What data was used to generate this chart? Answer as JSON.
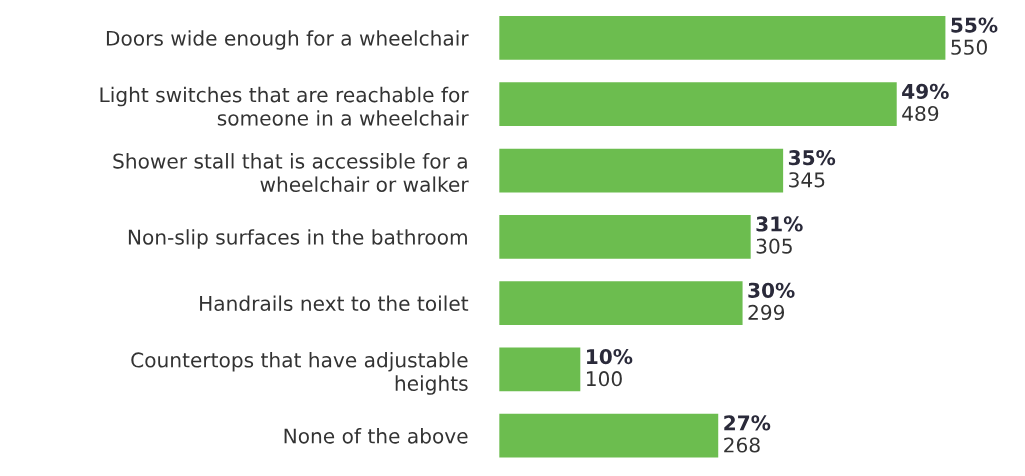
{
  "chart_data": {
    "type": "bar",
    "orientation": "horizontal",
    "categories": [
      "Doors wide enough for a wheelchair",
      "Light switches that are reachable for\nsomeone in a wheelchair",
      "Shower stall that is accessible for a\nwheelchair or walker",
      "Non-slip surfaces in the bathroom",
      "Handrails next to the toilet",
      "Countertops that have adjustable\nheights",
      "None of the above"
    ],
    "values": [
      55,
      49,
      35,
      31,
      30,
      10,
      27
    ],
    "value_labels": [
      "55%\n550",
      "49%\n489",
      "35%\n345",
      "31%\n305",
      "30%\n299",
      "10%\n100",
      "27%\n268"
    ],
    "color": "#6cbd4f"
  }
}
